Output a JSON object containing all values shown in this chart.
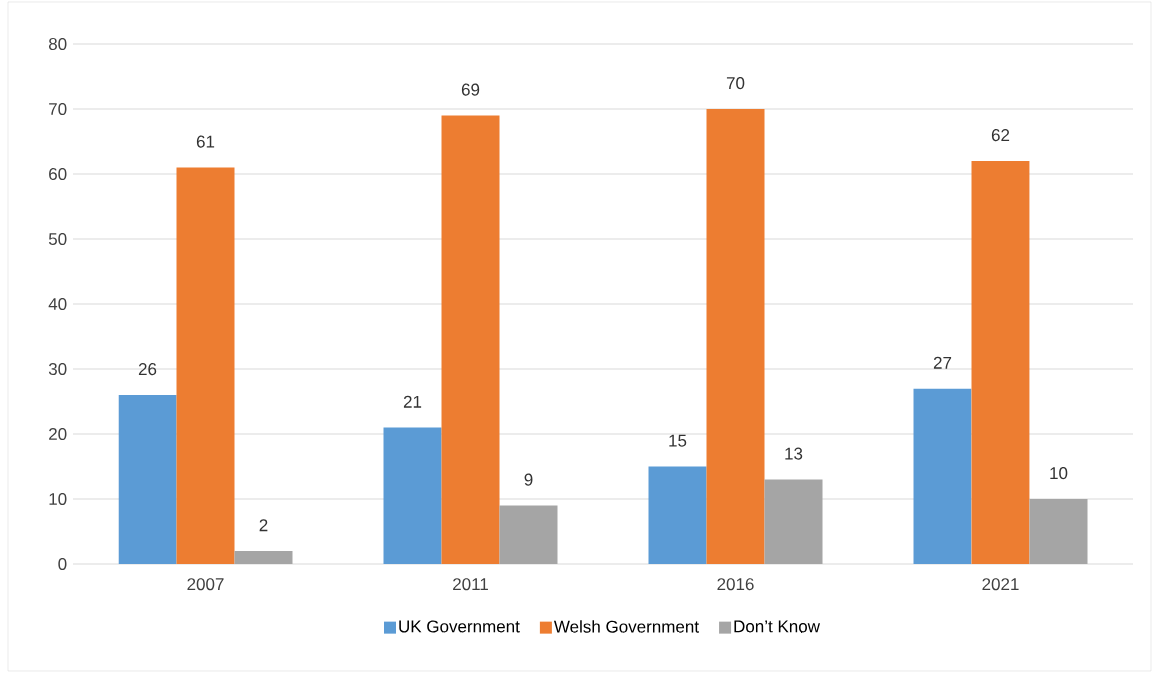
{
  "chart_data": {
    "type": "bar",
    "categories": [
      "2007",
      "2011",
      "2016",
      "2021"
    ],
    "series": [
      {
        "name": "UK Government",
        "color": "#5b9bd5",
        "values": [
          26,
          21,
          15,
          27
        ]
      },
      {
        "name": "Welsh Government",
        "color": "#ed7d31",
        "values": [
          61,
          69,
          70,
          62
        ]
      },
      {
        "name": "Don’t Know",
        "color": "#a5a5a5",
        "values": [
          2,
          9,
          13,
          10
        ]
      }
    ],
    "ylim": [
      0,
      80
    ],
    "yticks": [
      0,
      10,
      20,
      30,
      40,
      50,
      60,
      70,
      80
    ],
    "grid": "y",
    "legend": "bottom",
    "data_labels": true
  }
}
